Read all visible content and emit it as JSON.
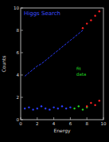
{
  "chart_data": {
    "type": "scatter",
    "title": "Higgs Search",
    "x_label": "Energy",
    "y_label": "Counts",
    "annotations": [
      "fit",
      "data"
    ],
    "xlim": [
      0,
      10
    ],
    "ylim": [
      0,
      10
    ],
    "xticks": [
      0,
      2,
      4,
      6,
      8,
      10
    ],
    "yticks": [
      0,
      2,
      4,
      6,
      8,
      10
    ],
    "grid": false,
    "series": [
      {
        "type": "line",
        "color": "#2a3cff",
        "line_style": "dashed",
        "marker": "none",
        "x": [
          0.5,
          1,
          1.5,
          2,
          2.5,
          3,
          3.5,
          4,
          4.5,
          5,
          5.5,
          6,
          6.5,
          7,
          7.5
        ],
        "values": [
          3.9,
          4.2,
          4.5,
          4.8,
          5.0,
          5.3,
          5.6,
          5.9,
          6.2,
          6.5,
          6.8,
          7.1,
          7.4,
          7.7,
          8.0
        ]
      },
      {
        "type": "scatter",
        "color": "#ff2020",
        "marker": "circle",
        "x": [
          7.5,
          8,
          8.5,
          9,
          9.5
        ],
        "values": [
          8.2,
          8.6,
          8.9,
          9.3,
          9.7
        ]
      },
      {
        "type": "scatter",
        "color": "#2a3cff",
        "marker": "circle",
        "x": [
          0.5,
          1,
          1.5,
          2,
          2.5,
          3,
          3.5,
          4,
          4.5,
          5,
          5.5,
          6
        ],
        "values": [
          1.0,
          1.1,
          0.9,
          1.0,
          1.2,
          1.0,
          0.9,
          1.1,
          1.0,
          1.2,
          1.0,
          1.1
        ]
      },
      {
        "type": "scatter",
        "color": "#20d020",
        "marker": "circle",
        "x": [
          6.5,
          7,
          7.5,
          8
        ],
        "values": [
          1.0,
          1.2,
          0.9,
          1.1
        ]
      },
      {
        "type": "scatter",
        "color": "#ff2020",
        "marker": "circle",
        "x": [
          8,
          8.5,
          9,
          9.5
        ],
        "values": [
          1.2,
          1.5,
          1.3,
          1.7
        ]
      }
    ]
  }
}
